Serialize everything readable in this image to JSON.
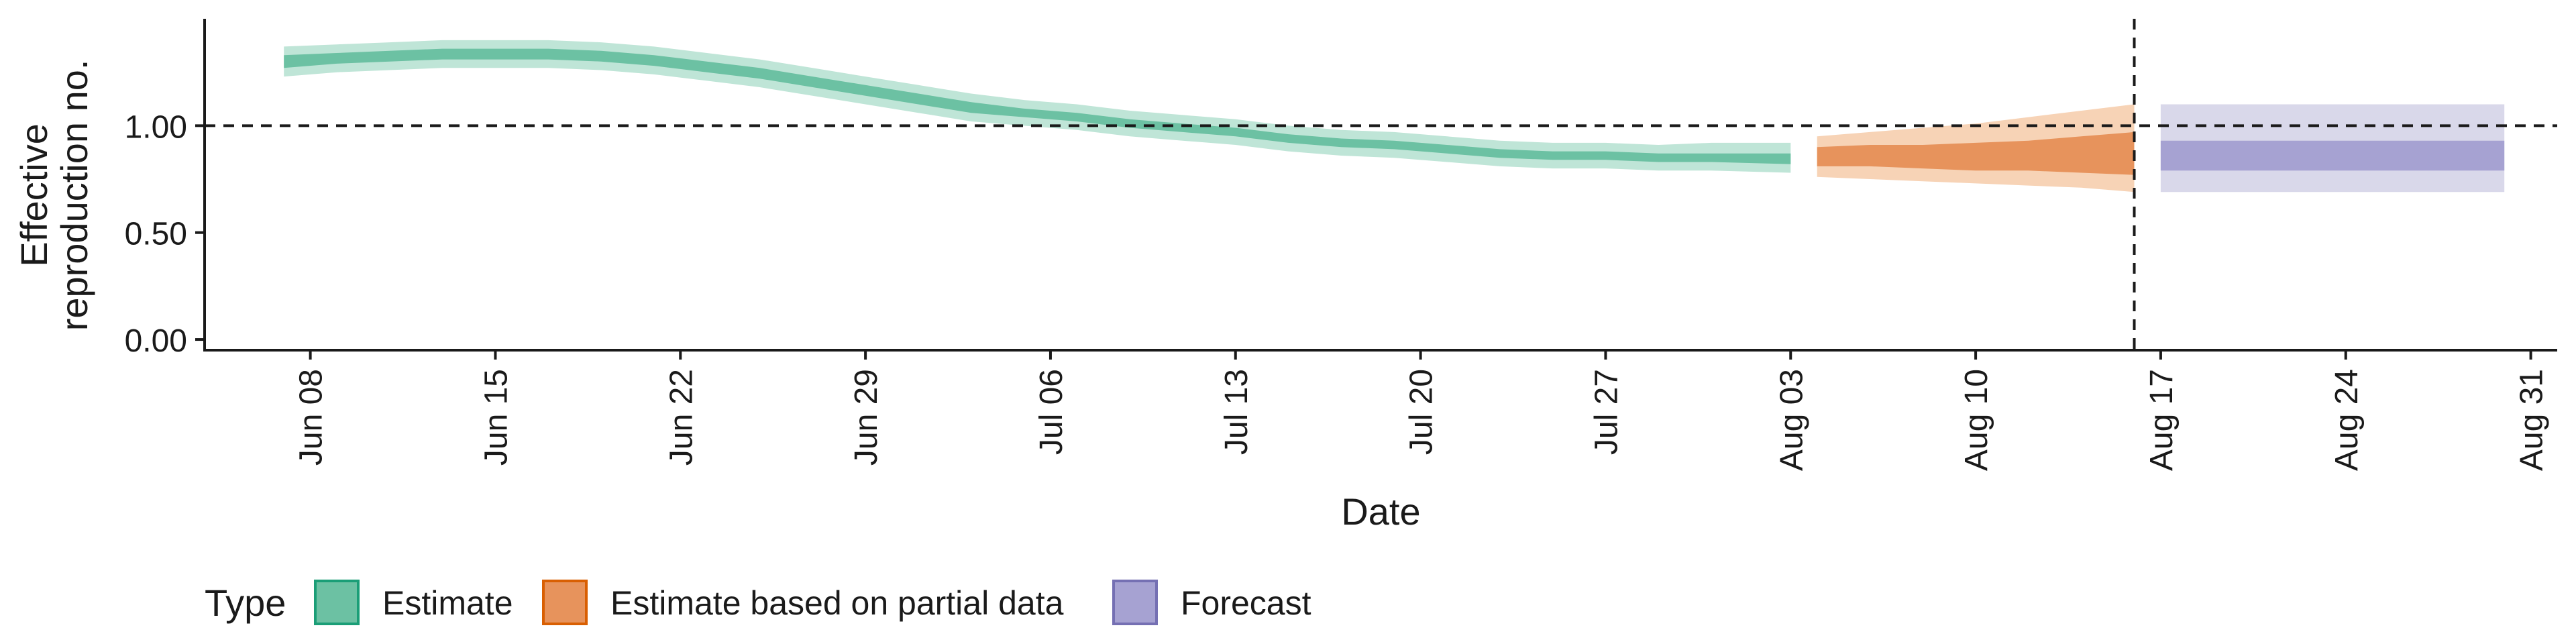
{
  "chart_data": {
    "type": "area",
    "xlabel": "Date",
    "ylabel_lines": [
      "Effective",
      "reproduction no."
    ],
    "x_domain": [
      "2020-06-04",
      "2020-09-01"
    ],
    "ylim": [
      -0.05,
      1.5
    ],
    "y_ticks": [
      {
        "value": 0.0,
        "label": "0.00"
      },
      {
        "value": 0.5,
        "label": "0.50"
      },
      {
        "value": 1.0,
        "label": "1.00"
      }
    ],
    "x_ticks": [
      {
        "date": "2020-06-08",
        "label": "Jun 08"
      },
      {
        "date": "2020-06-15",
        "label": "Jun 15"
      },
      {
        "date": "2020-06-22",
        "label": "Jun 22"
      },
      {
        "date": "2020-06-29",
        "label": "Jun 29"
      },
      {
        "date": "2020-07-06",
        "label": "Jul 06"
      },
      {
        "date": "2020-07-13",
        "label": "Jul 13"
      },
      {
        "date": "2020-07-20",
        "label": "Jul 20"
      },
      {
        "date": "2020-07-27",
        "label": "Jul 27"
      },
      {
        "date": "2020-08-03",
        "label": "Aug 03"
      },
      {
        "date": "2020-08-10",
        "label": "Aug 10"
      },
      {
        "date": "2020-08-17",
        "label": "Aug 17"
      },
      {
        "date": "2020-08-24",
        "label": "Aug 24"
      },
      {
        "date": "2020-08-31",
        "label": "Aug 31"
      }
    ],
    "reference_line_y": 1.0,
    "forecast_start": "2020-08-16",
    "grid": false,
    "legend": {
      "title": "Type",
      "position": "bottom-left",
      "entries": [
        {
          "key": "estimate",
          "label": "Estimate"
        },
        {
          "key": "partial",
          "label": "Estimate based on partial data"
        },
        {
          "key": "forecast",
          "label": "Forecast"
        }
      ]
    },
    "colors": {
      "estimate": {
        "outer": "#bfe5d7",
        "inner": "#6cc1a3",
        "border": "#1b9e77"
      },
      "partial": {
        "outer": "#f7d3b6",
        "inner": "#e7935c",
        "border": "#d95f02"
      },
      "forecast": {
        "outer": "#d9d8ea",
        "inner": "#a6a2d2",
        "border": "#7570b3"
      }
    },
    "series": [
      {
        "key": "estimate",
        "points": [
          {
            "date": "2020-06-07",
            "lo90": 1.23,
            "lo50": 1.27,
            "hi50": 1.33,
            "hi90": 1.37
          },
          {
            "date": "2020-06-09",
            "lo90": 1.25,
            "lo50": 1.29,
            "hi50": 1.34,
            "hi90": 1.38
          },
          {
            "date": "2020-06-11",
            "lo90": 1.26,
            "lo50": 1.3,
            "hi50": 1.35,
            "hi90": 1.39
          },
          {
            "date": "2020-06-13",
            "lo90": 1.27,
            "lo50": 1.31,
            "hi50": 1.36,
            "hi90": 1.4
          },
          {
            "date": "2020-06-15",
            "lo90": 1.27,
            "lo50": 1.31,
            "hi50": 1.36,
            "hi90": 1.4
          },
          {
            "date": "2020-06-17",
            "lo90": 1.27,
            "lo50": 1.31,
            "hi50": 1.36,
            "hi90": 1.4
          },
          {
            "date": "2020-06-19",
            "lo90": 1.26,
            "lo50": 1.3,
            "hi50": 1.35,
            "hi90": 1.39
          },
          {
            "date": "2020-06-21",
            "lo90": 1.24,
            "lo50": 1.28,
            "hi50": 1.33,
            "hi90": 1.37
          },
          {
            "date": "2020-06-23",
            "lo90": 1.21,
            "lo50": 1.25,
            "hi50": 1.3,
            "hi90": 1.34
          },
          {
            "date": "2020-06-25",
            "lo90": 1.18,
            "lo50": 1.22,
            "hi50": 1.27,
            "hi90": 1.31
          },
          {
            "date": "2020-06-27",
            "lo90": 1.14,
            "lo50": 1.18,
            "hi50": 1.23,
            "hi90": 1.27
          },
          {
            "date": "2020-06-29",
            "lo90": 1.1,
            "lo50": 1.14,
            "hi50": 1.19,
            "hi90": 1.23
          },
          {
            "date": "2020-07-01",
            "lo90": 1.06,
            "lo50": 1.1,
            "hi50": 1.15,
            "hi90": 1.19
          },
          {
            "date": "2020-07-03",
            "lo90": 1.02,
            "lo50": 1.06,
            "hi50": 1.11,
            "hi90": 1.15
          },
          {
            "date": "2020-07-05",
            "lo90": 1.0,
            "lo50": 1.04,
            "hi50": 1.08,
            "hi90": 1.12
          },
          {
            "date": "2020-07-07",
            "lo90": 0.98,
            "lo50": 1.02,
            "hi50": 1.06,
            "hi90": 1.1
          },
          {
            "date": "2020-07-09",
            "lo90": 0.95,
            "lo50": 0.99,
            "hi50": 1.03,
            "hi90": 1.07
          },
          {
            "date": "2020-07-11",
            "lo90": 0.93,
            "lo50": 0.97,
            "hi50": 1.01,
            "hi90": 1.05
          },
          {
            "date": "2020-07-13",
            "lo90": 0.91,
            "lo50": 0.95,
            "hi50": 0.99,
            "hi90": 1.03
          },
          {
            "date": "2020-07-15",
            "lo90": 0.88,
            "lo50": 0.92,
            "hi50": 0.96,
            "hi90": 1.0
          },
          {
            "date": "2020-07-17",
            "lo90": 0.86,
            "lo50": 0.9,
            "hi50": 0.94,
            "hi90": 0.98
          },
          {
            "date": "2020-07-19",
            "lo90": 0.85,
            "lo50": 0.89,
            "hi50": 0.93,
            "hi90": 0.97
          },
          {
            "date": "2020-07-21",
            "lo90": 0.83,
            "lo50": 0.87,
            "hi50": 0.91,
            "hi90": 0.95
          },
          {
            "date": "2020-07-23",
            "lo90": 0.81,
            "lo50": 0.85,
            "hi50": 0.89,
            "hi90": 0.93
          },
          {
            "date": "2020-07-25",
            "lo90": 0.8,
            "lo50": 0.84,
            "hi50": 0.88,
            "hi90": 0.92
          },
          {
            "date": "2020-07-27",
            "lo90": 0.8,
            "lo50": 0.84,
            "hi50": 0.88,
            "hi90": 0.92
          },
          {
            "date": "2020-07-29",
            "lo90": 0.79,
            "lo50": 0.83,
            "hi50": 0.87,
            "hi90": 0.91
          },
          {
            "date": "2020-07-31",
            "lo90": 0.79,
            "lo50": 0.83,
            "hi50": 0.87,
            "hi90": 0.92
          },
          {
            "date": "2020-08-03",
            "lo90": 0.78,
            "lo50": 0.82,
            "hi50": 0.87,
            "hi90": 0.92
          }
        ]
      },
      {
        "key": "partial",
        "points": [
          {
            "date": "2020-08-04",
            "lo90": 0.76,
            "lo50": 0.81,
            "hi50": 0.9,
            "hi90": 0.95
          },
          {
            "date": "2020-08-06",
            "lo90": 0.75,
            "lo50": 0.81,
            "hi50": 0.91,
            "hi90": 0.97
          },
          {
            "date": "2020-08-08",
            "lo90": 0.74,
            "lo50": 0.8,
            "hi50": 0.91,
            "hi90": 0.99
          },
          {
            "date": "2020-08-10",
            "lo90": 0.73,
            "lo50": 0.79,
            "hi50": 0.92,
            "hi90": 1.01
          },
          {
            "date": "2020-08-12",
            "lo90": 0.72,
            "lo50": 0.79,
            "hi50": 0.93,
            "hi90": 1.04
          },
          {
            "date": "2020-08-14",
            "lo90": 0.71,
            "lo50": 0.78,
            "hi50": 0.95,
            "hi90": 1.07
          },
          {
            "date": "2020-08-16",
            "lo90": 0.69,
            "lo50": 0.77,
            "hi50": 0.97,
            "hi90": 1.1
          }
        ]
      },
      {
        "key": "forecast",
        "points": [
          {
            "date": "2020-08-17",
            "lo90": 0.69,
            "lo50": 0.79,
            "hi50": 0.93,
            "hi90": 1.1
          },
          {
            "date": "2020-08-30",
            "lo90": 0.69,
            "lo50": 0.79,
            "hi50": 0.93,
            "hi90": 1.1
          }
        ]
      }
    ]
  }
}
